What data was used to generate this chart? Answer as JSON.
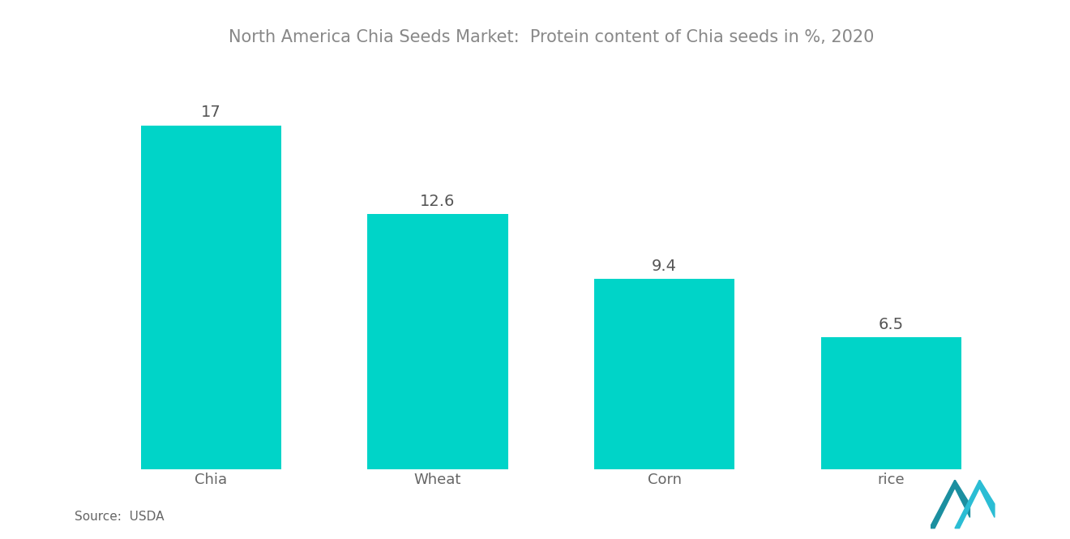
{
  "title": "North America Chia Seeds Market:  Protein content of Chia seeds in %, 2020",
  "categories": [
    "Chia",
    "Wheat",
    "Corn",
    "rice"
  ],
  "values": [
    17,
    12.6,
    9.4,
    6.5
  ],
  "bar_color": "#00D4C8",
  "value_labels": [
    "17",
    "12.6",
    "9.4",
    "6.5"
  ],
  "source_text": "Source:  USDA",
  "background_color": "#FFFFFF",
  "title_color": "#888888",
  "label_color": "#666666",
  "value_color": "#555555",
  "source_color": "#666666",
  "title_fontsize": 15,
  "label_fontsize": 13,
  "value_fontsize": 14,
  "source_fontsize": 11,
  "ylim": [
    0,
    20
  ],
  "bar_width": 0.62
}
